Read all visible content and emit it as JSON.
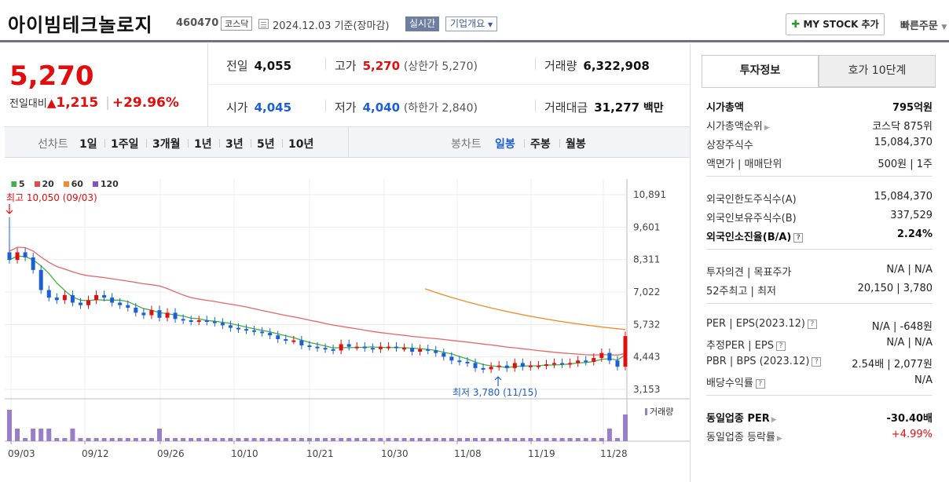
{
  "header": {
    "title": "아이빔테크놀로지",
    "code": "460470",
    "market": "코스닥",
    "date": "2024.12.03 기준(장마감)",
    "realtime": "실시간",
    "company_info": "기업개요",
    "mystock": "MY STOCK 추가",
    "quick_order": "빠른주문"
  },
  "price": {
    "current": "5,270",
    "change_label": "전일대비",
    "change_amount": "1,215",
    "change_pct": "+29.96%"
  },
  "summary": {
    "prev_label": "전일",
    "prev": "4,055",
    "high_label": "고가",
    "high": "5,270",
    "upper_limit": "(상한가 5,270)",
    "volume_label": "거래량",
    "volume": "6,322,908",
    "open_label": "시가",
    "open": "4,045",
    "low_label": "저가",
    "low": "4,040",
    "lower_limit": "(하한가 2,840)",
    "amount_label": "거래대금",
    "amount": "31,277",
    "amount_unit": "백만"
  },
  "toolbar": {
    "line_label": "선차트",
    "periods": [
      "1일",
      "1주일",
      "3개월",
      "1년",
      "3년",
      "5년",
      "10년"
    ],
    "candle_label": "봉차트",
    "candles": [
      "일봉",
      "주봉",
      "월봉"
    ]
  },
  "colors": {
    "up": "#e20d0d",
    "down": "#1a5fd4",
    "ma5": "#3fb33f",
    "ma20": "#e24b4b",
    "ma60": "#f08c2a",
    "ma120": "#8a4fc2"
  },
  "chart_data": {
    "type": "candlestick",
    "legend": [
      "5",
      "20",
      "60",
      "120"
    ],
    "y_ticks": [
      "10,891",
      "9,601",
      "8,311",
      "7,022",
      "5,732",
      "4,443",
      "3,153"
    ],
    "ylim": [
      3153,
      10891
    ],
    "x_ticks": [
      "09/03",
      "09/12",
      "09/26",
      "10/10",
      "10/21",
      "10/30",
      "11/08",
      "11/19",
      "11/28"
    ],
    "high_annotation": "최고 10,050 (09/03)",
    "low_annotation": "최저 3,780 (11/15)",
    "volume_label": "거래량",
    "close": [
      8300,
      8600,
      8400,
      7900,
      7100,
      6800,
      6700,
      6900,
      6600,
      6500,
      6700,
      6900,
      6800,
      6600,
      6500,
      6400,
      6200,
      6100,
      6300,
      6000,
      6200,
      5950,
      5900,
      5850,
      5900,
      5850,
      5800,
      5700,
      5600,
      5550,
      5500,
      5450,
      5400,
      5300,
      5150,
      5100,
      5100,
      4900,
      4850,
      4800,
      4750,
      4700,
      4950,
      4850,
      4850,
      4800,
      4750,
      4850,
      4850,
      4800,
      4800,
      4650,
      4750,
      4700,
      4600,
      4450,
      4300,
      4250,
      4200,
      4000,
      3950,
      4050,
      4100,
      4000,
      4200,
      4050,
      4100,
      4100,
      4150,
      4200,
      4150,
      4200,
      4300,
      4250,
      4400,
      4600,
      4300,
      4055,
      5270
    ],
    "ma60_start": 7150,
    "ma60_end": 5530
  },
  "tabs": {
    "invest": "투자정보",
    "quote": "호가 10단계"
  },
  "info": {
    "g1": [
      {
        "k": "시가총액",
        "v": "795억원",
        "bold": true
      },
      {
        "k": "시가총액순위",
        "v": "코스닥 875위",
        "arrow": true
      },
      {
        "k": "상장주식수",
        "v": "15,084,370"
      },
      {
        "k": "액면가 | 매매단위",
        "v": "500원 | 1주"
      }
    ],
    "g2": [
      {
        "k": "외국인한도주식수(A)",
        "v": "15,084,370"
      },
      {
        "k": "외국인보유주식수(B)",
        "v": "337,529"
      },
      {
        "k": "외국인소진율(B/A)",
        "v": "2.24%",
        "bold": true,
        "help": true
      }
    ],
    "g3": [
      {
        "k": "투자의견 | 목표주가",
        "v": "N/A | N/A"
      },
      {
        "k": "52주최고 | 최저",
        "v": "20,150 | 3,780"
      }
    ],
    "g4": [
      {
        "k": "PER | EPS(2023.12)",
        "v": "N/A | -648원",
        "help": true
      },
      {
        "k": "추정PER | EPS",
        "v": "N/A | N/A",
        "help": true
      },
      {
        "k": "PBR | BPS (2023.12)",
        "v": "2.54배 | 2,077원",
        "help": true
      },
      {
        "k": "배당수익률",
        "v": "N/A",
        "help": true
      }
    ],
    "g5": [
      {
        "k": "동일업종 PER",
        "v": "-30.40배",
        "bold": true,
        "arrow": true
      },
      {
        "k": "동일업종 등락률",
        "v": "+4.99%",
        "arrow": true,
        "red": true
      }
    ]
  }
}
